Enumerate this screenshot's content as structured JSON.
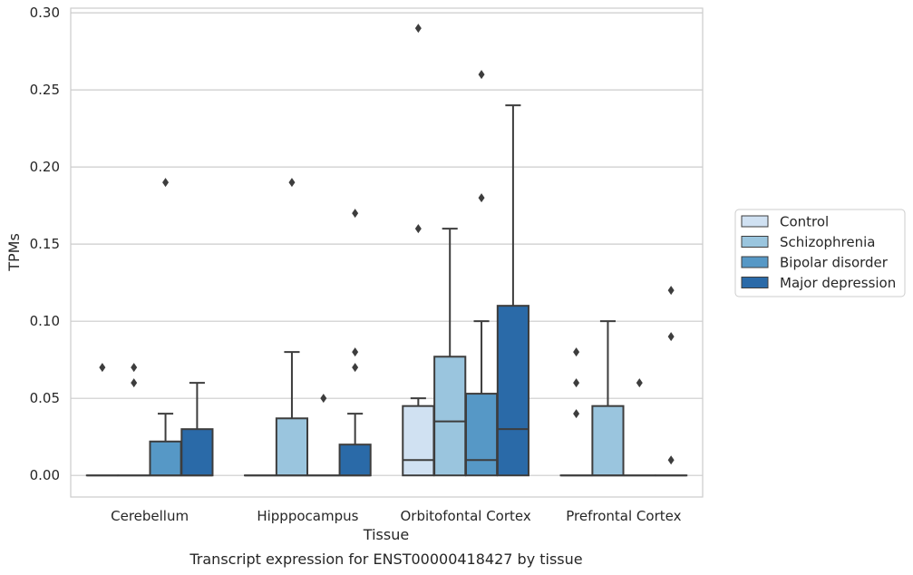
{
  "chart_data": {
    "type": "box",
    "xlabel": "Tissue",
    "ylabel": "TPMs",
    "caption": "Transcript expression for ENST00000418427 by tissue",
    "ylim": [
      -0.014,
      0.303
    ],
    "yticks": [
      "0.00",
      "0.05",
      "0.10",
      "0.15",
      "0.20",
      "0.25",
      "0.30"
    ],
    "grid": "horizontal",
    "legend_position": "right",
    "categories": [
      "Cerebellum",
      "Hipppocampus",
      "Orbitofontal Cortex",
      "Prefrontal Cortex"
    ],
    "series": [
      {
        "name": "Control",
        "color": "#d0e1f2",
        "boxes": [
          {
            "q1": 0,
            "median": 0,
            "q3": 0,
            "whisker_low": 0,
            "whisker_high": 0,
            "outliers": [
              0.07
            ]
          },
          {
            "q1": 0,
            "median": 0,
            "q3": 0,
            "whisker_low": 0,
            "whisker_high": 0,
            "outliers": []
          },
          {
            "q1": 0,
            "median": 0.01,
            "q3": 0.045,
            "whisker_low": 0,
            "whisker_high": 0.05,
            "outliers": [
              0.16,
              0.29
            ]
          },
          {
            "q1": 0,
            "median": 0,
            "q3": 0,
            "whisker_low": 0,
            "whisker_high": 0,
            "outliers": [
              0.04,
              0.06,
              0.08
            ]
          }
        ]
      },
      {
        "name": "Schizophrenia",
        "color": "#9ac5de",
        "boxes": [
          {
            "q1": 0,
            "median": 0,
            "q3": 0,
            "whisker_low": 0,
            "whisker_high": 0,
            "outliers": [
              0.06,
              0.07
            ]
          },
          {
            "q1": 0,
            "median": 0,
            "q3": 0.037,
            "whisker_low": 0,
            "whisker_high": 0.08,
            "outliers": [
              0.19
            ]
          },
          {
            "q1": 0,
            "median": 0.035,
            "q3": 0.077,
            "whisker_low": 0,
            "whisker_high": 0.16,
            "outliers": []
          },
          {
            "q1": 0,
            "median": 0,
            "q3": 0.045,
            "whisker_low": 0,
            "whisker_high": 0.1,
            "outliers": []
          }
        ]
      },
      {
        "name": "Bipolar disorder",
        "color": "#5698c6",
        "boxes": [
          {
            "q1": 0,
            "median": 0,
            "q3": 0.022,
            "whisker_low": 0,
            "whisker_high": 0.04,
            "outliers": [
              0.19
            ]
          },
          {
            "q1": 0,
            "median": 0,
            "q3": 0,
            "whisker_low": 0,
            "whisker_high": 0,
            "outliers": [
              0.05
            ]
          },
          {
            "q1": 0,
            "median": 0.01,
            "q3": 0.053,
            "whisker_low": 0,
            "whisker_high": 0.1,
            "outliers": [
              0.18,
              0.26
            ]
          },
          {
            "q1": 0,
            "median": 0,
            "q3": 0,
            "whisker_low": 0,
            "whisker_high": 0,
            "outliers": [
              0.06
            ]
          }
        ]
      },
      {
        "name": "Major depression",
        "color": "#2a6aa8",
        "boxes": [
          {
            "q1": 0,
            "median": 0,
            "q3": 0.03,
            "whisker_low": 0,
            "whisker_high": 0.06,
            "outliers": []
          },
          {
            "q1": 0,
            "median": 0,
            "q3": 0.02,
            "whisker_low": 0,
            "whisker_high": 0.04,
            "outliers": [
              0.07,
              0.08,
              0.17
            ]
          },
          {
            "q1": 0,
            "median": 0.03,
            "q3": 0.11,
            "whisker_low": 0,
            "whisker_high": 0.24,
            "outliers": []
          },
          {
            "q1": 0,
            "median": 0,
            "q3": 0,
            "whisker_low": 0,
            "whisker_high": 0,
            "outliers": [
              0.01,
              0.09,
              0.12
            ]
          }
        ]
      }
    ]
  }
}
